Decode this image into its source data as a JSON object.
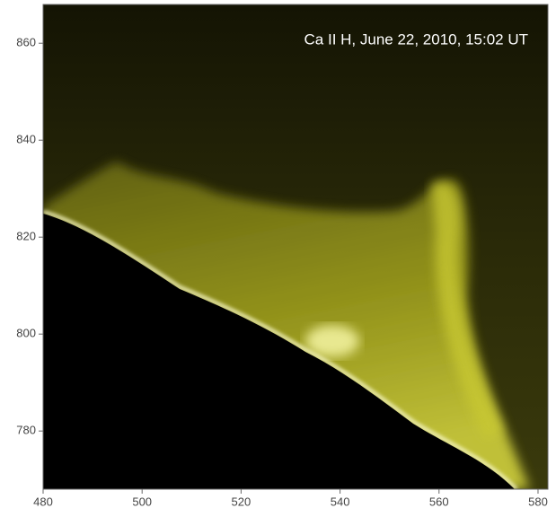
{
  "chart_data": {
    "type": "image",
    "annotation": "Ca II H, June 22, 2010, 15:02 UT",
    "xlim": [
      480,
      582
    ],
    "ylim": [
      768,
      868
    ],
    "xticks": [
      480,
      500,
      520,
      540,
      560,
      580
    ],
    "yticks": [
      780,
      800,
      820,
      840,
      860
    ]
  }
}
